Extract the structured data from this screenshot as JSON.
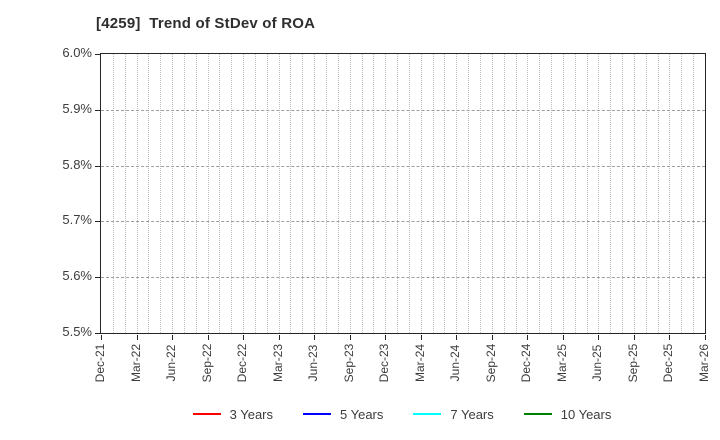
{
  "chart_data": {
    "type": "line",
    "title": "[4259]  Trend of StDev of ROA",
    "x_tick_labels": [
      "Dec-21",
      "Mar-22",
      "Jun-22",
      "Sep-22",
      "Dec-22",
      "Mar-23",
      "Jun-23",
      "Sep-23",
      "Dec-23",
      "Mar-24",
      "Jun-24",
      "Sep-24",
      "Dec-24",
      "Mar-25",
      "Jun-25",
      "Sep-25",
      "Dec-25",
      "Mar-26"
    ],
    "y_tick_labels": [
      "5.5%",
      "5.6%",
      "5.7%",
      "5.8%",
      "5.9%",
      "6.0%"
    ],
    "ylim": [
      5.5,
      6.0
    ],
    "y_tick_step": 0.1,
    "y_unit": "percent",
    "grid": true,
    "minor_vertical_gridlines": "monthly",
    "legend_position": "bottom-center",
    "plot_is_empty": true,
    "series": [
      {
        "name": "3 Years",
        "color": "#ff0000",
        "values": []
      },
      {
        "name": "5 Years",
        "color": "#0000ff",
        "values": []
      },
      {
        "name": "7 Years",
        "color": "#00ffff",
        "values": []
      },
      {
        "name": "10 Years",
        "color": "#008000",
        "values": []
      }
    ]
  },
  "colors": {
    "background": "#ffffff",
    "title_text": "#2e2e2e",
    "axis_text": "#3c3c3c",
    "plot_border": "#262626",
    "major_grid": "#9e9e9e",
    "minor_grid": "#bdbdbd"
  }
}
